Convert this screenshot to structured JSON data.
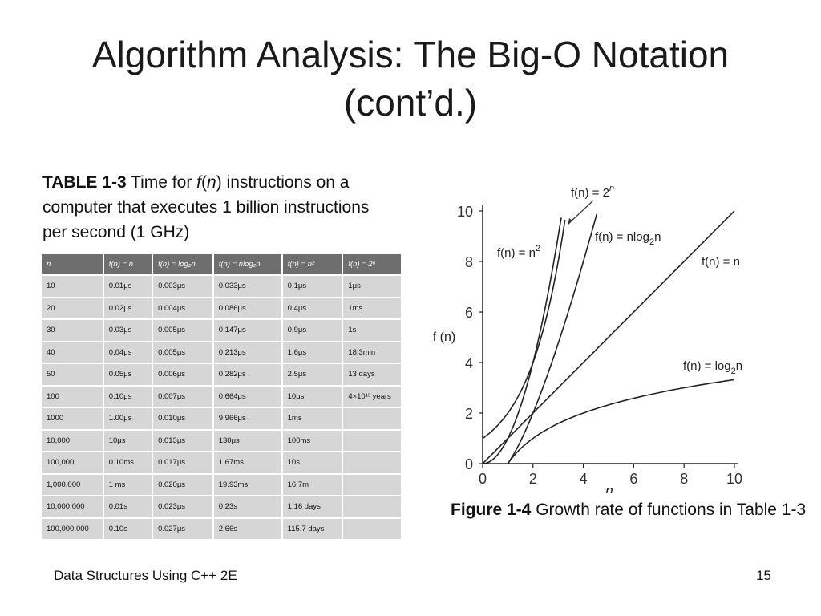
{
  "slide": {
    "title_line1": "Algorithm Analysis: The Big-O Notation",
    "title_line2": "(cont’d.)",
    "footer_left": "Data Structures Using C++ 2E",
    "page_number": "15"
  },
  "table_caption": {
    "label": "TABLE 1-3",
    "text_before": " Time for ",
    "fn": "f",
    "paren_open": "(",
    "n": "n",
    "paren_close": ")",
    "text_after": " instructions on a computer that executes 1 billion instructions per second (1 GHz)"
  },
  "table": {
    "headers": [
      "n",
      "f(n) = n",
      "f(n) = log₂n",
      "f(n) = nlog₂n",
      "f(n) = n²",
      "f(n) = 2ⁿ"
    ],
    "rows": [
      [
        "10",
        "0.01μs",
        "0.003μs",
        "0.033μs",
        "0.1μs",
        "1μs"
      ],
      [
        "20",
        "0.02μs",
        "0.004μs",
        "0.086μs",
        "0.4μs",
        "1ms"
      ],
      [
        "30",
        "0.03μs",
        "0.005μs",
        "0.147μs",
        "0.9μs",
        "1s"
      ],
      [
        "40",
        "0.04μs",
        "0.005μs",
        "0.213μs",
        "1.6μs",
        "18.3min"
      ],
      [
        "50",
        "0.05μs",
        "0.006μs",
        "0.282μs",
        "2.5μs",
        "13 days"
      ],
      [
        "100",
        "0.10μs",
        "0.007μs",
        "0.664μs",
        "10μs",
        "4×10¹³ years"
      ],
      [
        "1000",
        "1.00μs",
        "0.010μs",
        "9.966μs",
        "1ms",
        ""
      ],
      [
        "10,000",
        "10μs",
        "0.013μs",
        "130μs",
        "100ms",
        ""
      ],
      [
        "100,000",
        "0.10ms",
        "0.017μs",
        "1.67ms",
        "10s",
        ""
      ],
      [
        "1,000,000",
        "1 ms",
        "0.020μs",
        "19.93ms",
        "16.7m",
        ""
      ],
      [
        "10,000,000",
        "0.01s",
        "0.023μs",
        "0.23s",
        "1.16 days",
        ""
      ],
      [
        "100,000,000",
        "0.10s",
        "0.027μs",
        "2.66s",
        "115.7 days",
        ""
      ]
    ]
  },
  "figure_caption": {
    "label": "Figure 1-4",
    "text": " Growth rate of functions in Table 1-3"
  },
  "chart_data": {
    "type": "line",
    "title": "",
    "xlabel": "n",
    "ylabel": "f (n)",
    "xlim": [
      0,
      10
    ],
    "ylim": [
      0,
      10
    ],
    "xticks": [
      0,
      2,
      4,
      6,
      8,
      10
    ],
    "yticks": [
      0,
      2,
      4,
      6,
      8,
      10
    ],
    "series": [
      {
        "name": "f(n) = 2ⁿ",
        "label_main": "f(n) = 2",
        "label_sup": "n",
        "x": [
          0,
          1,
          2,
          3,
          3.25
        ],
        "y": [
          1,
          2,
          4,
          8,
          9.5
        ]
      },
      {
        "name": "f(n) = n²",
        "label_main": "f(n) = n",
        "label_sup": "2",
        "x": [
          0,
          1,
          2,
          3,
          3.1
        ],
        "y": [
          0,
          1,
          4,
          9,
          9.6
        ]
      },
      {
        "name": "f(n) = nlog₂n",
        "label_main": "f(n) = nlog",
        "label_sub": "2",
        "label_tail": "n",
        "x": [
          1,
          2,
          3,
          4,
          4.5
        ],
        "y": [
          0,
          2,
          4.75,
          8,
          9.77
        ]
      },
      {
        "name": "f(n) = n",
        "label_main": "f(n) = n",
        "x": [
          0,
          10
        ],
        "y": [
          0,
          10
        ]
      },
      {
        "name": "f(n) = log₂n",
        "label_main": "f(n) = log",
        "label_sub": "2",
        "label_tail": "n",
        "x": [
          1,
          2,
          4,
          6,
          8,
          10
        ],
        "y": [
          0,
          1,
          2,
          2.58,
          3,
          3.32
        ]
      }
    ]
  }
}
